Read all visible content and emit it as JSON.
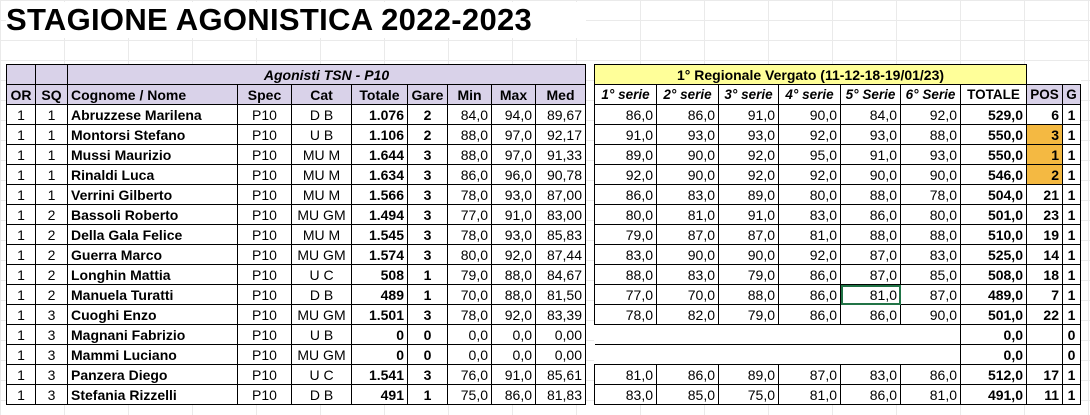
{
  "title": "STAGIONE AGONISTICA 2022-2023",
  "left": {
    "band": "Agonisti TSN - P10",
    "headers": [
      "OR",
      "SQ",
      "Cognome / Nome",
      "Spec",
      "Cat",
      "Totale",
      "Gare",
      "Min",
      "Max",
      "Med"
    ],
    "rows": [
      [
        "1",
        "1",
        "Abruzzese Marilena",
        "P10",
        "D B",
        "1.076",
        "2",
        "84,0",
        "94,0",
        "89,67"
      ],
      [
        "1",
        "1",
        "Montorsi Stefano",
        "P10",
        "U B",
        "1.106",
        "2",
        "88,0",
        "97,0",
        "92,17"
      ],
      [
        "1",
        "1",
        "Mussi Maurizio",
        "P10",
        "MU M",
        "1.644",
        "3",
        "88,0",
        "97,0",
        "91,33"
      ],
      [
        "1",
        "1",
        "Rinaldi Luca",
        "P10",
        "MU M",
        "1.634",
        "3",
        "86,0",
        "96,0",
        "90,78"
      ],
      [
        "1",
        "1",
        "Verrini Gilberto",
        "P10",
        "MU M",
        "1.566",
        "3",
        "78,0",
        "93,0",
        "87,00"
      ],
      [
        "1",
        "2",
        "Bassoli Roberto",
        "P10",
        "MU GM",
        "1.494",
        "3",
        "77,0",
        "91,0",
        "83,00"
      ],
      [
        "1",
        "2",
        "Della Gala Felice",
        "P10",
        "MU M",
        "1.545",
        "3",
        "78,0",
        "93,0",
        "85,83"
      ],
      [
        "1",
        "2",
        "Guerra Marco",
        "P10",
        "MU GM",
        "1.574",
        "3",
        "80,0",
        "92,0",
        "87,44"
      ],
      [
        "1",
        "2",
        "Longhin Mattia",
        "P10",
        "U C",
        "508",
        "1",
        "79,0",
        "88,0",
        "84,67"
      ],
      [
        "1",
        "2",
        "Manuela Turatti",
        "P10",
        "D B",
        "489",
        "1",
        "70,0",
        "88,0",
        "81,50"
      ],
      [
        "1",
        "3",
        "Cuoghi Enzo",
        "P10",
        "MU GM",
        "1.501",
        "3",
        "78,0",
        "92,0",
        "83,39"
      ],
      [
        "1",
        "3",
        "Magnani Fabrizio",
        "P10",
        "U B",
        "0",
        "0",
        "0,0",
        "0,0",
        "0,00"
      ],
      [
        "1",
        "3",
        "Mammi Luciano",
        "P10",
        "MU GM",
        "0",
        "0",
        "0,0",
        "0,0",
        "0,00"
      ],
      [
        "1",
        "3",
        "Panzera Diego",
        "P10",
        "U C",
        "1.541",
        "3",
        "76,0",
        "91,0",
        "85,61"
      ],
      [
        "1",
        "3",
        "Stefania Rizzelli",
        "P10",
        "D B",
        "491",
        "1",
        "75,0",
        "86,0",
        "81,83"
      ]
    ]
  },
  "right": {
    "band": "1° Regionale Vergato (11-12-18-19/01/23)",
    "headers": [
      "1° serie",
      "2° serie",
      "3° serie",
      "4° serie",
      "5° Serie",
      "6° Serie",
      "TOTALE",
      "POS",
      "G"
    ],
    "rows": [
      [
        "86,0",
        "86,0",
        "91,0",
        "90,0",
        "84,0",
        "92,0",
        "529,0",
        "6",
        "1"
      ],
      [
        "91,0",
        "93,0",
        "93,0",
        "92,0",
        "93,0",
        "88,0",
        "550,0",
        "3",
        "1"
      ],
      [
        "89,0",
        "90,0",
        "92,0",
        "95,0",
        "91,0",
        "93,0",
        "550,0",
        "1",
        "1"
      ],
      [
        "92,0",
        "90,0",
        "92,0",
        "92,0",
        "90,0",
        "90,0",
        "546,0",
        "2",
        "1"
      ],
      [
        "86,0",
        "83,0",
        "89,0",
        "80,0",
        "88,0",
        "78,0",
        "504,0",
        "21",
        "1"
      ],
      [
        "80,0",
        "81,0",
        "91,0",
        "83,0",
        "86,0",
        "80,0",
        "501,0",
        "23",
        "1"
      ],
      [
        "79,0",
        "87,0",
        "87,0",
        "81,0",
        "88,0",
        "88,0",
        "510,0",
        "19",
        "1"
      ],
      [
        "83,0",
        "90,0",
        "90,0",
        "92,0",
        "87,0",
        "83,0",
        "525,0",
        "14",
        "1"
      ],
      [
        "88,0",
        "83,0",
        "79,0",
        "86,0",
        "87,0",
        "85,0",
        "508,0",
        "18",
        "1"
      ],
      [
        "77,0",
        "70,0",
        "88,0",
        "86,0",
        "81,0",
        "87,0",
        "489,0",
        "7",
        "1"
      ],
      [
        "78,0",
        "82,0",
        "79,0",
        "86,0",
        "86,0",
        "90,0",
        "501,0",
        "22",
        "1"
      ],
      [
        "",
        "",
        "",
        "",
        "",
        "",
        "0,0",
        "",
        "0"
      ],
      [
        "",
        "",
        "",
        "",
        "",
        "",
        "0,0",
        "",
        "0"
      ],
      [
        "81,0",
        "86,0",
        "89,0",
        "87,0",
        "83,0",
        "86,0",
        "512,0",
        "17",
        "1"
      ],
      [
        "83,0",
        "85,0",
        "75,0",
        "81,0",
        "86,0",
        "81,0",
        "491,0",
        "11",
        "1"
      ]
    ],
    "highlight_color": "#f4b942"
  }
}
